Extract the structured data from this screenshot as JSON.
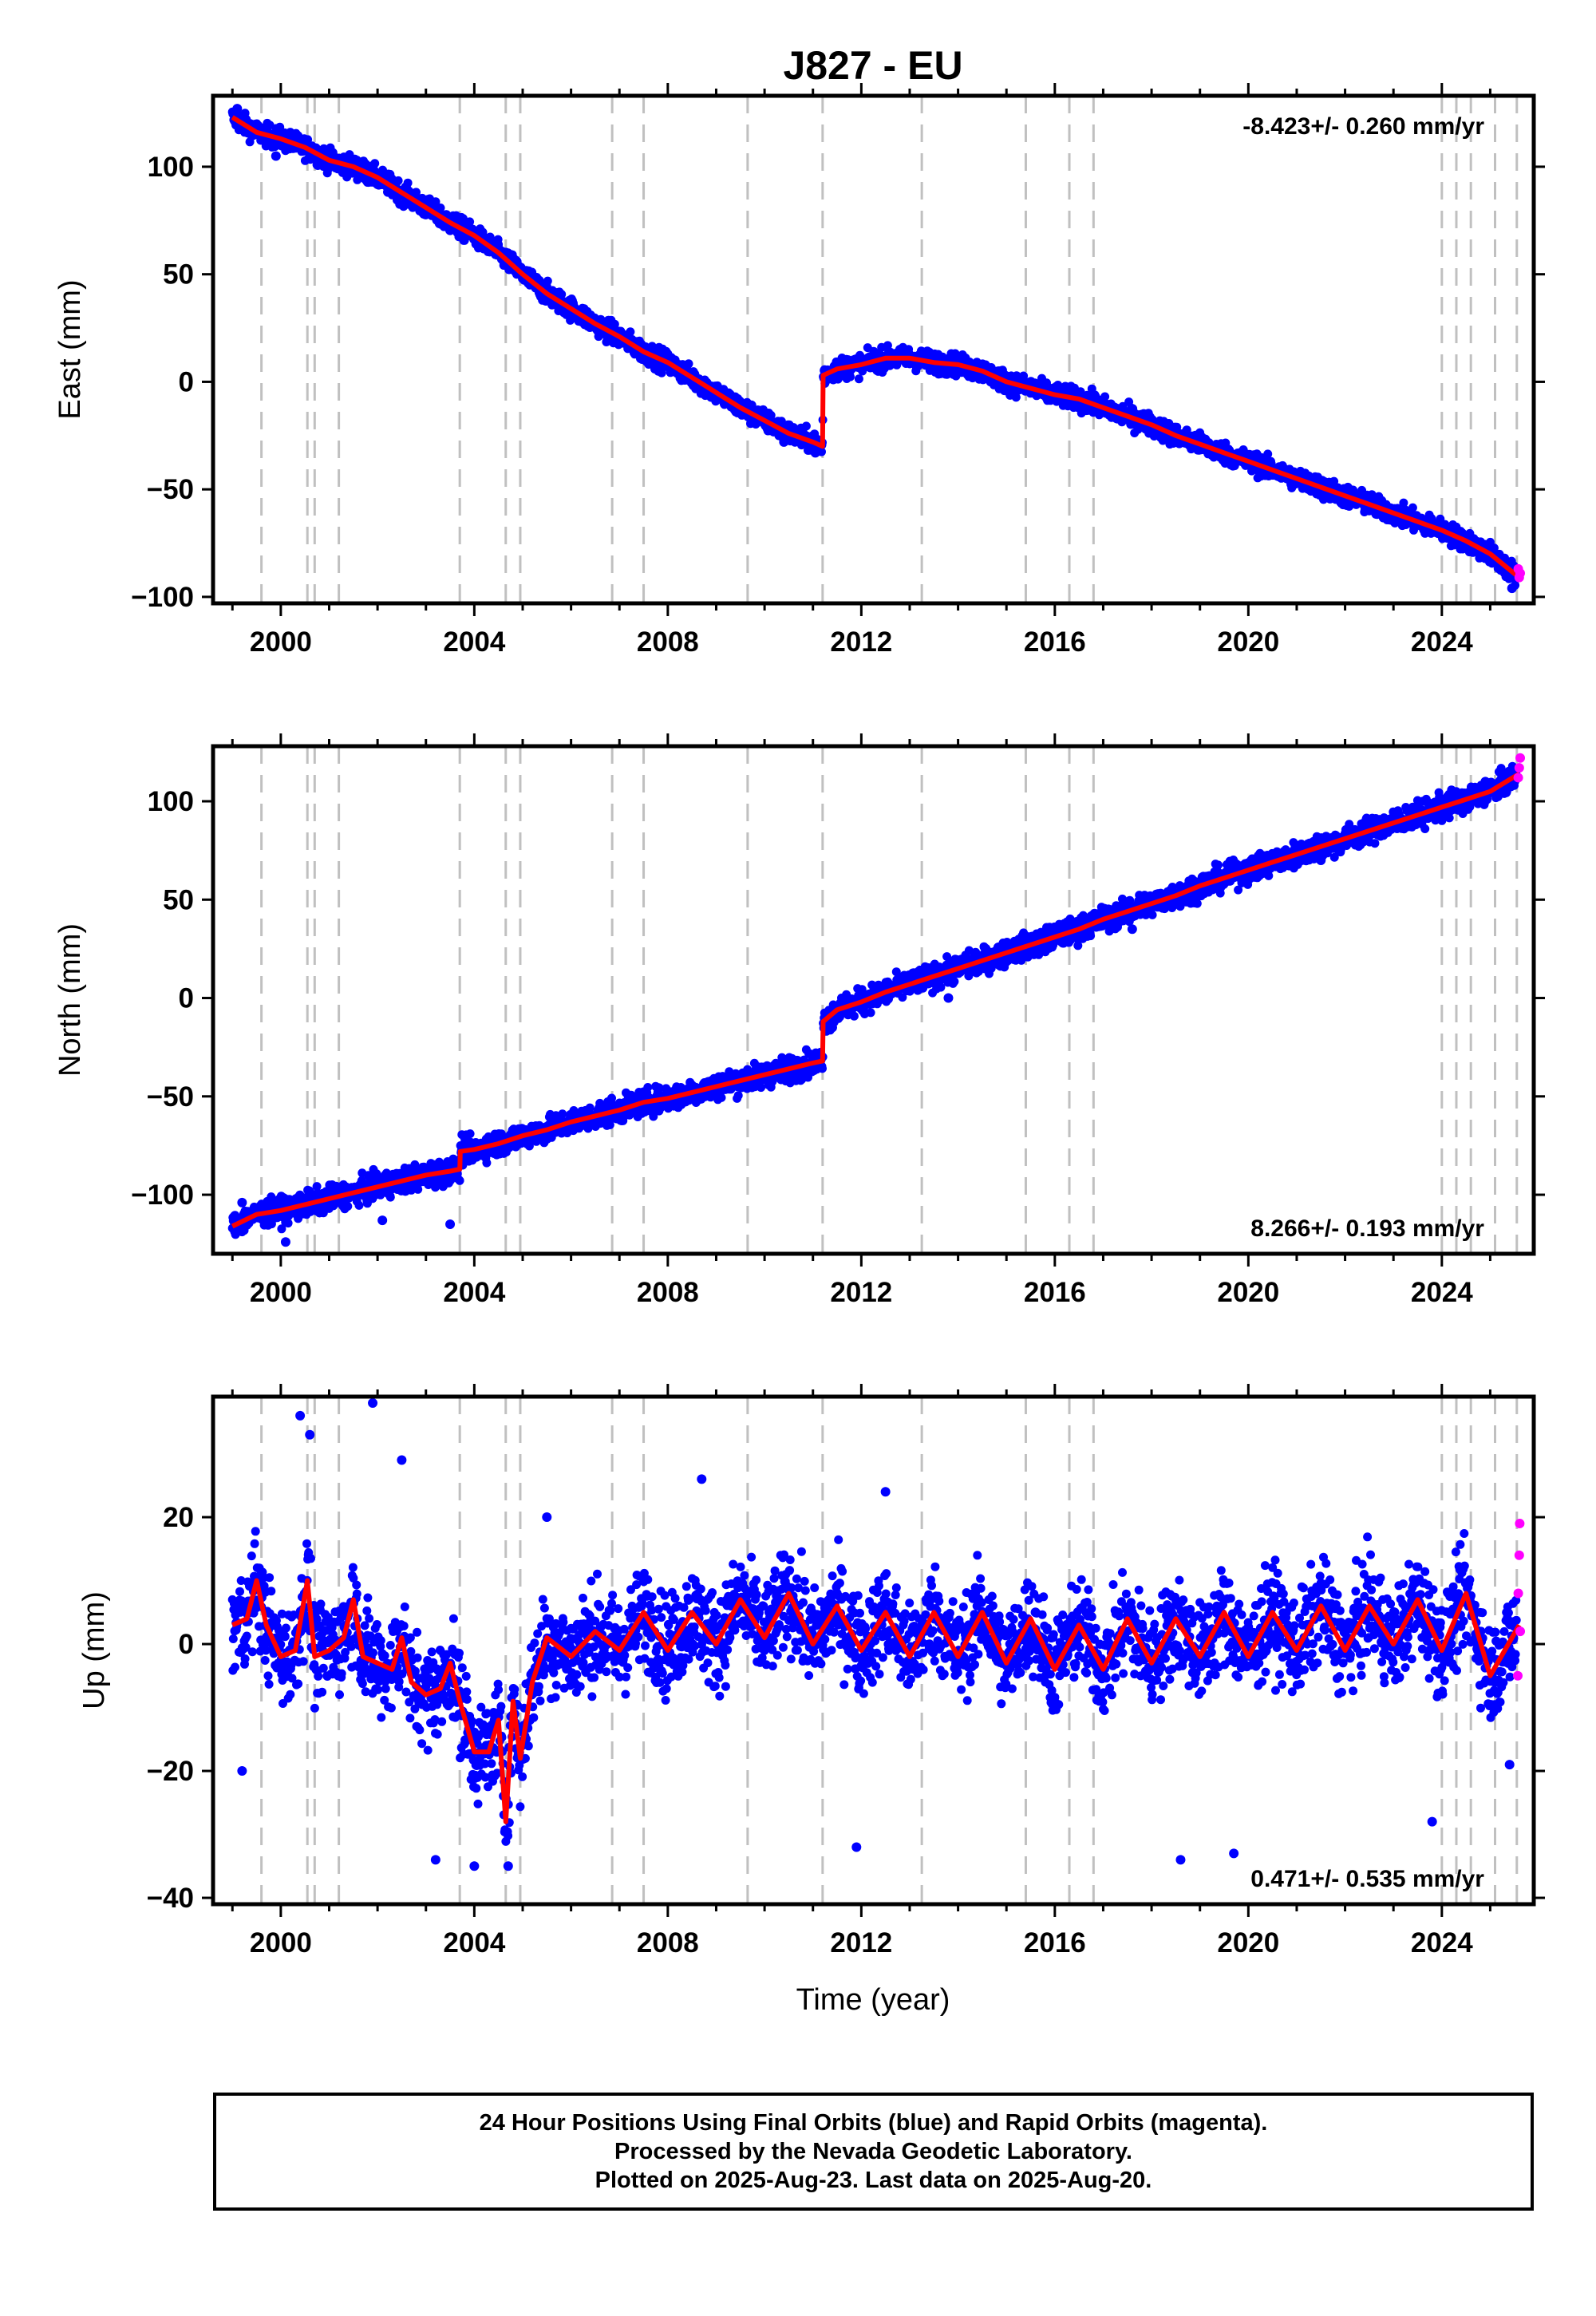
{
  "title": "J827 - EU",
  "xlabel": "Time (year)",
  "footer": {
    "line1": "24 Hour Positions Using Final Orbits (blue) and Rapid Orbits (magenta).",
    "line2": "Processed by the Nevada Geodetic Laboratory.",
    "line3": "Plotted on 2025-Aug-23. Last data on 2025-Aug-20."
  },
  "colors": {
    "final_orbits": "#0000ff",
    "rapid_orbits": "#ff00ff",
    "model": "#ff0000",
    "event_lines": "#c0c0c0"
  },
  "chart_data": [
    {
      "type": "scatter",
      "component": "East",
      "ylabel": "East (mm)",
      "rate_label": "-8.423+/- 0.260 mm/yr",
      "rate_position": "top-right",
      "xlim": [
        1998.6,
        2025.9
      ],
      "ylim": [
        -103,
        133
      ],
      "xticks": [
        2000,
        2004,
        2008,
        2012,
        2016,
        2020,
        2024
      ],
      "yticks": [
        -100,
        -50,
        0,
        50,
        100
      ],
      "event_lines": [
        1999.6,
        2000.55,
        2000.7,
        2001.2,
        2003.7,
        2004.65,
        2004.95,
        2006.85,
        2007.5,
        2009.65,
        2011.2,
        2013.25,
        2015.4,
        2016.3,
        2016.8,
        2024.0,
        2024.3,
        2024.6,
        2025.1,
        2025.55
      ],
      "model": {
        "x": [
          1999.0,
          1999.5,
          2000.0,
          2000.5,
          2001.0,
          2001.5,
          2002.0,
          2002.5,
          2003.0,
          2003.5,
          2004.0,
          2004.5,
          2005.0,
          2005.5,
          2006.0,
          2006.5,
          2007.0,
          2007.5,
          2008.0,
          2008.5,
          2009.0,
          2009.5,
          2010.0,
          2010.5,
          2011.0,
          2011.2,
          2011.21,
          2011.5,
          2012.0,
          2012.5,
          2013.0,
          2013.5,
          2014.0,
          2014.5,
          2015.0,
          2015.5,
          2016.0,
          2016.5,
          2017.0,
          2017.5,
          2018.0,
          2018.5,
          2019.0,
          2019.5,
          2020.0,
          2020.5,
          2021.0,
          2021.5,
          2022.0,
          2022.5,
          2023.0,
          2023.5,
          2024.0,
          2024.5,
          2025.0,
          2025.6
        ],
        "y": [
          123,
          116,
          113,
          109,
          103,
          100,
          95,
          88,
          81,
          74,
          68,
          60,
          50,
          41,
          34,
          27,
          21,
          14,
          9,
          2,
          -5,
          -12,
          -18,
          -24,
          -28,
          -30,
          3,
          6,
          8,
          11,
          11,
          9,
          8,
          5,
          0,
          -3,
          -6,
          -8,
          -12,
          -16,
          -20,
          -25,
          -29,
          -33,
          -37,
          -41,
          -45,
          -49,
          -53,
          -57,
          -61,
          -65,
          -69,
          -74,
          -80,
          -91
        ]
      },
      "final_points": {
        "x": [
          1999.1,
          1999.9,
          2002.3,
          2005.6,
          2010.4,
          2011.05,
          2012.8,
          2018.4,
          2022.9,
          2025.45
        ],
        "y": [
          127,
          105,
          90,
          40,
          -28,
          -33,
          15,
          -24,
          -60,
          -96
        ]
      },
      "rapid_points": {
        "x": [
          2025.58,
          2025.6,
          2025.62
        ],
        "y": [
          -87,
          -91,
          -89
        ]
      }
    },
    {
      "type": "scatter",
      "component": "North",
      "ylabel": "North (mm)",
      "rate_label": "8.266+/- 0.193 mm/yr",
      "rate_position": "bottom-right",
      "xlim": [
        1998.6,
        2025.9
      ],
      "ylim": [
        -130,
        128
      ],
      "xticks": [
        2000,
        2004,
        2008,
        2012,
        2016,
        2020,
        2024
      ],
      "yticks": [
        -100,
        -50,
        0,
        50,
        100
      ],
      "event_lines": [
        1999.6,
        2000.55,
        2000.7,
        2001.2,
        2003.7,
        2004.65,
        2004.95,
        2006.85,
        2007.5,
        2009.65,
        2011.2,
        2013.25,
        2015.4,
        2016.3,
        2016.8,
        2024.0,
        2024.3,
        2024.6,
        2025.1,
        2025.55
      ],
      "model": {
        "x": [
          1999.0,
          1999.5,
          2000.0,
          2000.5,
          2001.0,
          2001.5,
          2002.0,
          2002.5,
          2003.0,
          2003.5,
          2003.7,
          2003.71,
          2004.0,
          2004.5,
          2005.0,
          2005.5,
          2006.0,
          2006.5,
          2007.0,
          2007.5,
          2008.0,
          2008.5,
          2009.0,
          2009.5,
          2010.0,
          2010.5,
          2011.0,
          2011.2,
          2011.21,
          2011.5,
          2012.0,
          2012.5,
          2013.0,
          2013.5,
          2014.0,
          2014.5,
          2015.0,
          2015.5,
          2016.0,
          2016.5,
          2017.0,
          2017.5,
          2018.0,
          2018.5,
          2019.0,
          2019.5,
          2020.0,
          2020.5,
          2021.0,
          2021.5,
          2022.0,
          2022.5,
          2023.0,
          2023.5,
          2024.0,
          2024.5,
          2025.0,
          2025.6
        ],
        "y": [
          -116,
          -110,
          -108,
          -105,
          -102,
          -99,
          -96,
          -93,
          -90,
          -88,
          -87,
          -78,
          -77,
          -74,
          -70,
          -67,
          -63,
          -60,
          -57,
          -53,
          -51,
          -48,
          -45,
          -42,
          -39,
          -36,
          -33,
          -32,
          -12,
          -6,
          -2,
          3,
          7,
          11,
          15,
          19,
          23,
          27,
          31,
          35,
          40,
          44,
          48,
          52,
          57,
          61,
          65,
          69,
          73,
          77,
          81,
          85,
          89,
          93,
          97,
          101,
          105,
          114
        ]
      },
      "final_points": {
        "x": [
          1999.2,
          2000.1,
          2002.1,
          2003.5,
          2007.3,
          2011.4,
          2013.8,
          2017.6,
          2021.5,
          2024.9
        ],
        "y": [
          -104,
          -124,
          -113,
          -115,
          -52,
          -15,
          0,
          35,
          70,
          110
        ]
      },
      "rapid_points": {
        "x": [
          2025.58,
          2025.6,
          2025.62
        ],
        "y": [
          112,
          117,
          122
        ]
      }
    },
    {
      "type": "scatter",
      "component": "Up",
      "ylabel": "Up (mm)",
      "rate_label": "0.471+/- 0.535 mm/yr",
      "rate_position": "bottom-right",
      "xlim": [
        1998.6,
        2025.9
      ],
      "ylim": [
        -41,
        39
      ],
      "xticks": [
        2000,
        2004,
        2008,
        2012,
        2016,
        2020,
        2024
      ],
      "yticks": [
        -40,
        -20,
        0,
        20
      ],
      "event_lines": [
        1999.6,
        2000.55,
        2000.7,
        2001.2,
        2003.7,
        2004.65,
        2004.95,
        2006.85,
        2007.5,
        2009.65,
        2011.2,
        2013.25,
        2015.4,
        2016.3,
        2016.8,
        2024.0,
        2024.3,
        2024.6,
        2025.1,
        2025.55
      ],
      "model": {
        "x": [
          1999.0,
          1999.3,
          1999.5,
          1999.7,
          2000.0,
          2000.3,
          2000.55,
          2000.7,
          2001.0,
          2001.3,
          2001.5,
          2001.7,
          2002.0,
          2002.3,
          2002.5,
          2002.7,
          2003.0,
          2003.3,
          2003.5,
          2003.7,
          2004.0,
          2004.3,
          2004.5,
          2004.65,
          2004.8,
          2004.95,
          2005.2,
          2005.5,
          2006.0,
          2006.5,
          2007.0,
          2007.5,
          2008.0,
          2008.5,
          2009.0,
          2009.5,
          2010.0,
          2010.5,
          2011.0,
          2011.5,
          2012.0,
          2012.5,
          2013.0,
          2013.5,
          2014.0,
          2014.5,
          2015.0,
          2015.5,
          2016.0,
          2016.5,
          2017.0,
          2017.5,
          2018.0,
          2018.5,
          2019.0,
          2019.5,
          2020.0,
          2020.5,
          2021.0,
          2021.5,
          2022.0,
          2022.5,
          2023.0,
          2023.5,
          2024.0,
          2024.5,
          2025.0,
          2025.6
        ],
        "y": [
          3,
          4,
          10,
          3,
          -2,
          -1,
          10,
          -2,
          -1,
          1,
          7,
          -2,
          -3,
          -4,
          1,
          -6,
          -8,
          -7,
          -3,
          -9,
          -17,
          -17,
          -12,
          -28,
          -9,
          -18,
          -6,
          1,
          -2,
          2,
          -1,
          5,
          -1,
          5,
          0,
          7,
          1,
          8,
          0,
          6,
          -1,
          5,
          -2,
          5,
          -2,
          5,
          -3,
          4,
          -4,
          3,
          -4,
          4,
          -3,
          4,
          -2,
          5,
          -2,
          5,
          -1,
          6,
          -1,
          6,
          0,
          7,
          -1,
          8,
          -5,
          3
        ]
      },
      "final_points": {
        "x": [
          1999.2,
          2000.4,
          2000.6,
          2001.9,
          2002.5,
          2003.2,
          2004.0,
          2004.7,
          2005.5,
          2008.7,
          2011.9,
          2012.5,
          2015.6,
          2018.6,
          2019.7,
          2023.8,
          2025.4
        ],
        "y": [
          -20,
          36,
          33,
          38,
          29,
          -34,
          -35,
          -35,
          20,
          26,
          -32,
          24,
          5,
          -34,
          -33,
          -28,
          -19
        ]
      },
      "rapid_points": {
        "x": [
          2025.57,
          2025.58,
          2025.6,
          2025.61,
          2025.62
        ],
        "y": [
          -5,
          8,
          14,
          19,
          2
        ]
      }
    }
  ]
}
